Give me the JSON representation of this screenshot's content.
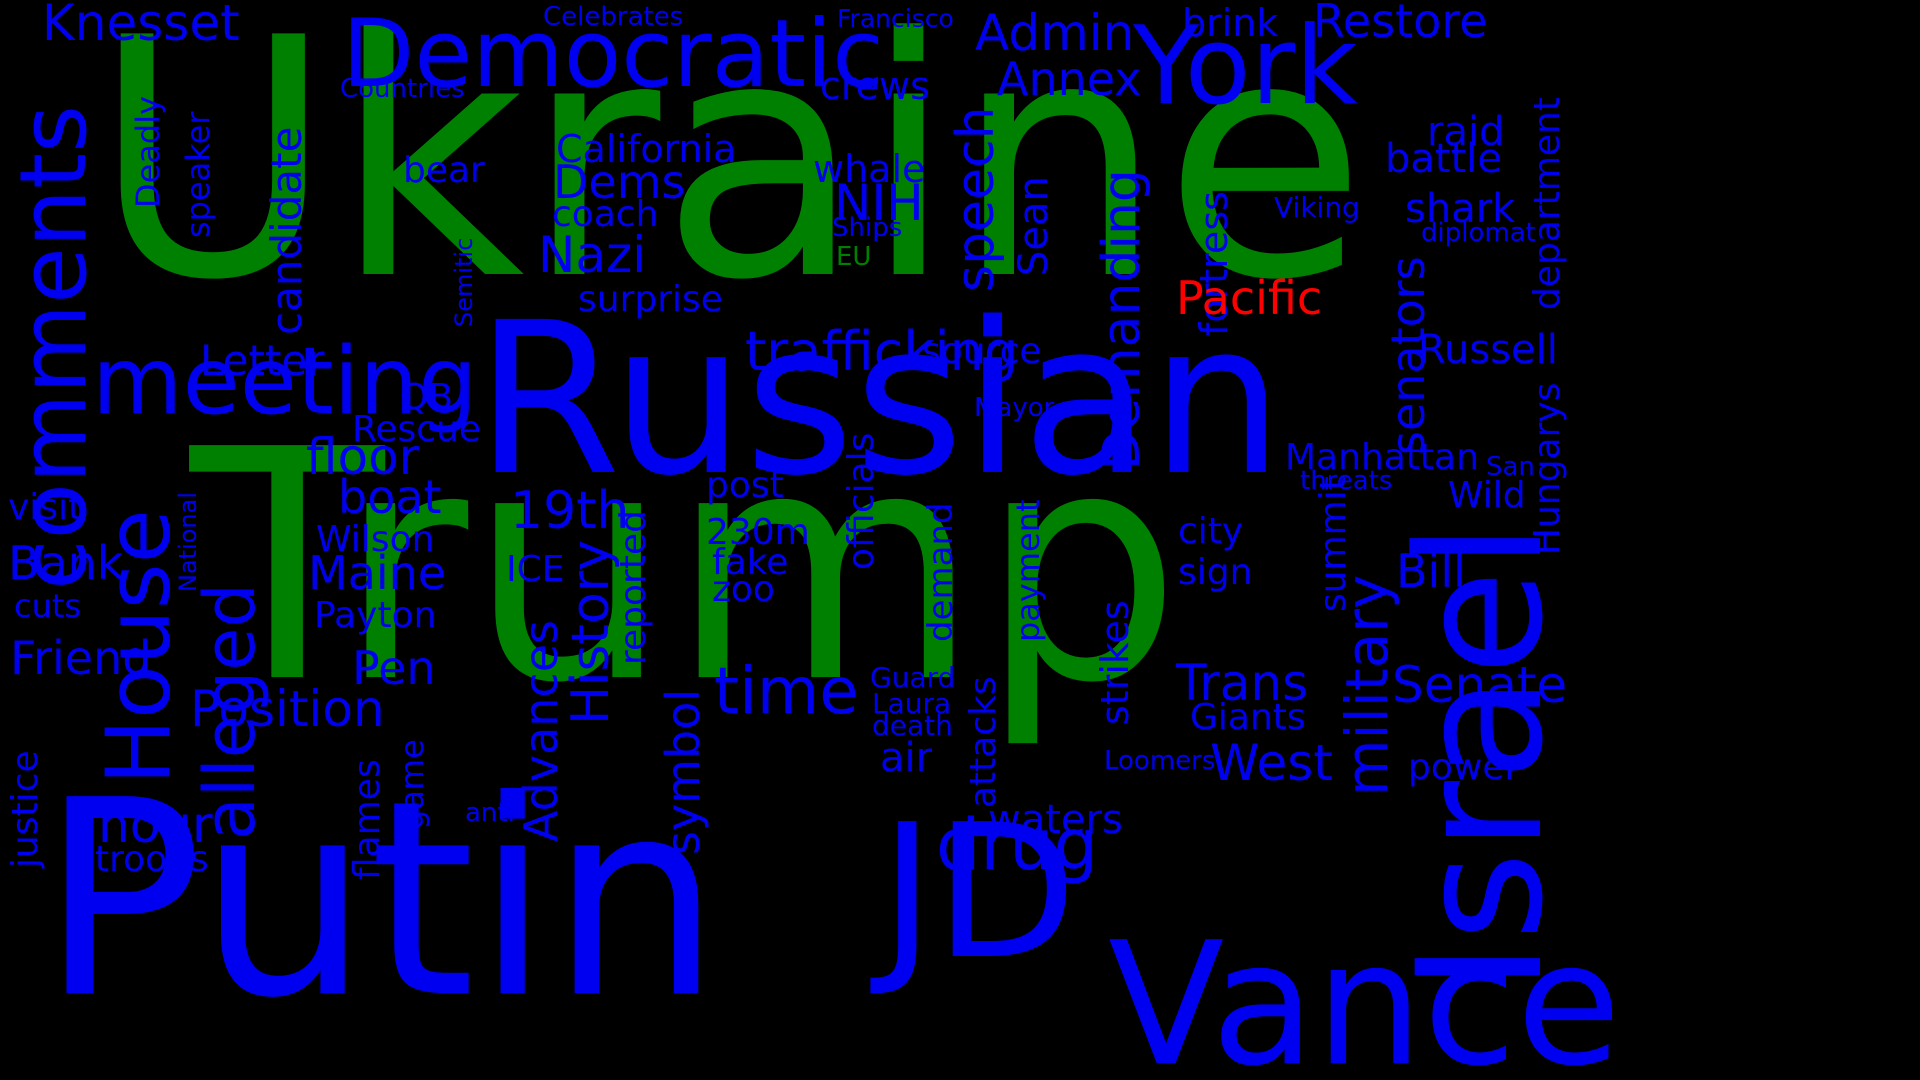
{
  "colors": {
    "background": "#000000",
    "blue": "#0000f0",
    "green": "#008000",
    "red": "#ff0000"
  },
  "words": {
    "ukraine": "Ukraine",
    "trump": "Trump",
    "russian": "Russian",
    "putin": "Putin",
    "vance": "Vance",
    "israel": "Israel",
    "jd": "JD",
    "democratic": "Democratic",
    "york": "York",
    "meeting": "meeting",
    "comments": "comments",
    "house": "House",
    "alleged": "alleged",
    "trafficking": "trafficking",
    "knesset": "Knesset",
    "admin": "Admin",
    "restore": "Restore",
    "annex": "Annex",
    "brink": "brink",
    "celebrates": "Celebrates",
    "francisco": "Francisco",
    "countries": "Countries",
    "crews": "crews",
    "deadly": "Deadly",
    "speaker": "speaker",
    "candidate": "candidate",
    "california": "California",
    "dems": "Dems",
    "bear": "bear",
    "whale": "whale",
    "nih": "NIH",
    "ships": "Ships",
    "eu": "EU",
    "coach": "coach",
    "speech": "speech",
    "sean": "Sean",
    "fortress": "fortress",
    "demanding": "Demanding",
    "raid": "raid",
    "battle": "battle",
    "shark": "shark",
    "viking": "Viking",
    "diplomat": "diplomat",
    "department": "department",
    "nazi": "Nazi",
    "semitic": "Semitic",
    "surprise": "surprise",
    "pacific": "Pacific",
    "senators": "senators",
    "russell": "Russell",
    "letter": "Letter",
    "source": "source",
    "mayor": "Mayor",
    "qb": "QB",
    "rescue": "Rescue",
    "floor": "floor",
    "officials": "officials",
    "manhattan": "Manhattan",
    "san": "San",
    "threats": "threats",
    "hungarys": "Hungarys",
    "wild": "Wild",
    "boat": "boat",
    "post": "post",
    "19th": "19th",
    "visit": "visit",
    "national": "National",
    "wilson": "Wilson",
    "230m": "230m",
    "city": "city",
    "military": "military",
    "summit": "summit",
    "bank": "Bank",
    "maine": "Maine",
    "ice": "ICE",
    "fake": "fake",
    "demand": "demand",
    "payment": "payment",
    "sign": "sign",
    "bill": "Bill",
    "cuts": "cuts",
    "history": "History",
    "reported": "reported",
    "zoo": "zoo",
    "payton": "Payton",
    "friend": "Friend",
    "pen": "Pen",
    "advances": "Advances",
    "strikes": "strikes",
    "trans": "Trans",
    "senate": "Senate",
    "guard": "Guard",
    "time": "time",
    "position": "Position",
    "laura": "Laura",
    "attacks": "attacks",
    "giants": "Giants",
    "death": "death",
    "symbol": "symbol",
    "justice": "justice",
    "air": "air",
    "west": "West",
    "loomers": "Loomers",
    "power": "power",
    "game": "game",
    "hour": "hour",
    "flames": "flames",
    "anti": "anti",
    "waters": "waters",
    "drug": "drug",
    "troops": "troops"
  }
}
